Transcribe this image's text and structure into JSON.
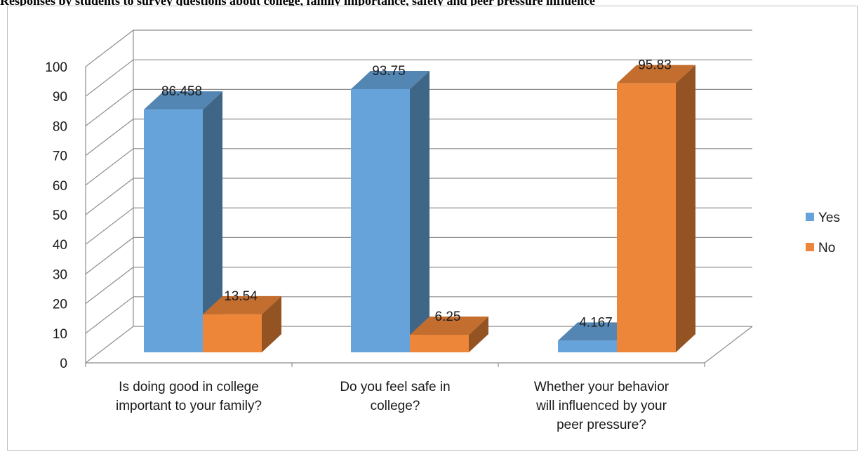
{
  "page": {
    "caption": "Responses by students to survey questions about college, family importance, safety and peer pressure influence"
  },
  "chart_data": {
    "type": "bar",
    "title": "",
    "xlabel": "",
    "ylabel": "",
    "ylim": [
      0,
      100
    ],
    "yticks": [
      0,
      10,
      20,
      30,
      40,
      50,
      60,
      70,
      80,
      90,
      100
    ],
    "categories": [
      [
        "Is doing good in college",
        "important to your family?"
      ],
      [
        "Do you feel safe in",
        "college?"
      ],
      [
        "Whether your behavior",
        "will influenced by your",
        "peer pressure?"
      ]
    ],
    "series": [
      {
        "name": "Yes",
        "values": [
          86.458,
          93.75,
          4.167
        ],
        "labels": [
          "86.458",
          "93.75",
          "4.167"
        ],
        "color": "#65A3DA"
      },
      {
        "name": "No",
        "values": [
          13.54,
          6.25,
          95.83
        ],
        "labels": [
          "13.54",
          "6.25",
          "95.83"
        ],
        "color": "#EE8639"
      }
    ],
    "grid": true,
    "legend_position": "right",
    "style": "3d-clustered-column"
  }
}
